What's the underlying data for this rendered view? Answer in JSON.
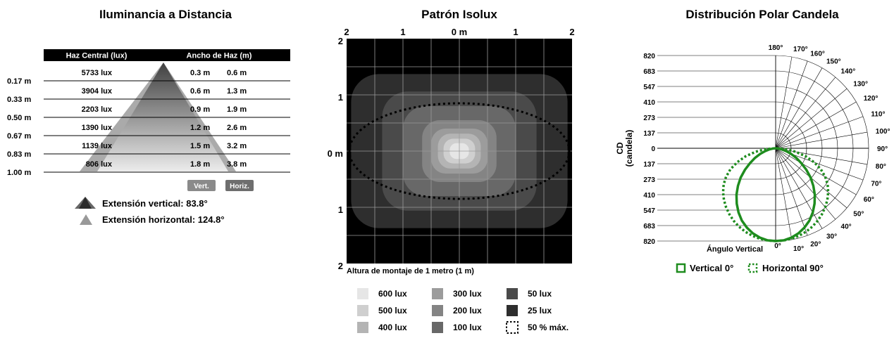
{
  "panel1": {
    "title": "Iluminancia a Distancia",
    "header_left": "Haz Central (lux)",
    "header_right": "Ancho de Haz (m)",
    "distances": [
      "0.17 m",
      "0.33 m",
      "0.50 m",
      "0.67 m",
      "0.83 m",
      "1.00 m"
    ],
    "lux_labels": [
      "5733 lux",
      "3904 lux",
      "2203 lux",
      "1390 lux",
      "1139 lux",
      "806 lux"
    ],
    "vert_widths": [
      "0.3 m",
      "0.6 m",
      "0.9 m",
      "1.2 m",
      "1.5 m",
      "1.8 m"
    ],
    "horiz_widths": [
      "0.6 m",
      "1.3 m",
      "1.9 m",
      "2.6 m",
      "3.2 m",
      "3.8 m"
    ],
    "badge_vert": "Vert.",
    "badge_horiz": "Horiz.",
    "vertical_spread": "Extensión vertical: 83.8°",
    "horizontal_spread": "Extensión horizontal: 124.8°"
  },
  "panel2": {
    "title": "Patrón Isolux",
    "top_ticks": [
      "2",
      "1",
      "0 m",
      "1",
      "2"
    ],
    "left_ticks": [
      "2",
      "1",
      "0 m",
      "1",
      "2"
    ],
    "caption": "Altura de montaje de 1 metro (1 m)",
    "legend": [
      {
        "label": "600 lux",
        "color": "#e6e6e6"
      },
      {
        "label": "500 lux",
        "color": "#cfcfcf"
      },
      {
        "label": "400 lux",
        "color": "#b4b4b4"
      },
      {
        "label": "300 lux",
        "color": "#9c9c9c"
      },
      {
        "label": "200 lux",
        "color": "#848484"
      },
      {
        "label": "100 lux",
        "color": "#686868"
      },
      {
        "label": "50 lux",
        "color": "#4a4a4a"
      },
      {
        "label": "25 lux",
        "color": "#2e2e2e"
      },
      {
        "label": "50 % máx.",
        "color": "dotted"
      }
    ]
  },
  "panel3": {
    "title": "Distribución Polar Candela",
    "y_label_1": "CD",
    "y_label_2": "(candela)",
    "cd_ticks": [
      "820",
      "683",
      "547",
      "410",
      "273",
      "137",
      "0",
      "137",
      "273",
      "410",
      "547",
      "683",
      "820"
    ],
    "angle_ticks": [
      "0°",
      "10°",
      "20°",
      "30°",
      "40°",
      "50°",
      "60°",
      "70°",
      "80°",
      "90°",
      "100°",
      "110°",
      "120°",
      "130°",
      "140°",
      "150°",
      "160°",
      "170°",
      "180°"
    ],
    "angle_axis_label": "Ángulo Vertical",
    "legend_vertical": "Vertical 0°",
    "legend_horizontal": "Horizontal 90°",
    "curve_color": "#1e8c1e"
  },
  "chart_data": [
    {
      "type": "table",
      "title": "Iluminancia a Distancia",
      "distance_m": [
        0.17,
        0.33,
        0.5,
        0.67,
        0.83,
        1.0
      ],
      "center_beam_lux": [
        5733,
        3904,
        2203,
        1390,
        1139,
        806
      ],
      "beam_width_vertical_m": [
        0.3,
        0.6,
        0.9,
        1.2,
        1.5,
        1.8
      ],
      "beam_width_horizontal_m": [
        0.6,
        1.3,
        1.9,
        2.6,
        3.2,
        3.8
      ],
      "vertical_spread_deg": 83.8,
      "horizontal_spread_deg": 124.8
    },
    {
      "type": "heatmap",
      "title": "Patrón Isolux",
      "mounting_height_m": 1,
      "x_range_m": [
        -2,
        2
      ],
      "y_range_m": [
        -2,
        2
      ],
      "levels_lux": [
        600,
        500,
        400,
        300,
        200,
        100,
        50,
        25
      ],
      "contour_half_width_m": [
        0.17,
        0.28,
        0.38,
        0.5,
        0.66,
        1.0,
        1.37,
        1.92
      ],
      "contour_half_height_m": [
        0.14,
        0.22,
        0.31,
        0.4,
        0.55,
        0.8,
        1.06,
        1.37
      ],
      "half_max_contour_half_width_m": 1.95,
      "half_max_contour_half_height_m": 0.85,
      "grid": true
    },
    {
      "type": "line",
      "title": "Distribución Polar Candela",
      "r_max_cd": 820,
      "angle_unit": "deg",
      "series": [
        {
          "name": "Vertical 0°",
          "angle_deg": [
            0,
            5,
            10,
            15,
            20,
            25,
            30,
            35,
            40,
            45,
            50,
            55,
            60,
            65,
            70,
            75,
            80,
            85,
            90
          ],
          "cd": [
            820,
            817,
            802,
            778,
            745,
            705,
            655,
            598,
            537,
            470,
            402,
            330,
            260,
            200,
            145,
            95,
            55,
            25,
            0
          ]
        },
        {
          "name": "Horizontal 90°",
          "angle_deg": [
            0,
            5,
            10,
            15,
            20,
            25,
            30,
            35,
            40,
            45,
            50,
            55,
            60,
            65,
            70,
            75,
            80,
            85,
            90
          ],
          "cd": [
            820,
            818,
            812,
            800,
            785,
            765,
            740,
            712,
            680,
            645,
            605,
            560,
            505,
            440,
            360,
            275,
            180,
            90,
            0
          ]
        }
      ]
    }
  ]
}
